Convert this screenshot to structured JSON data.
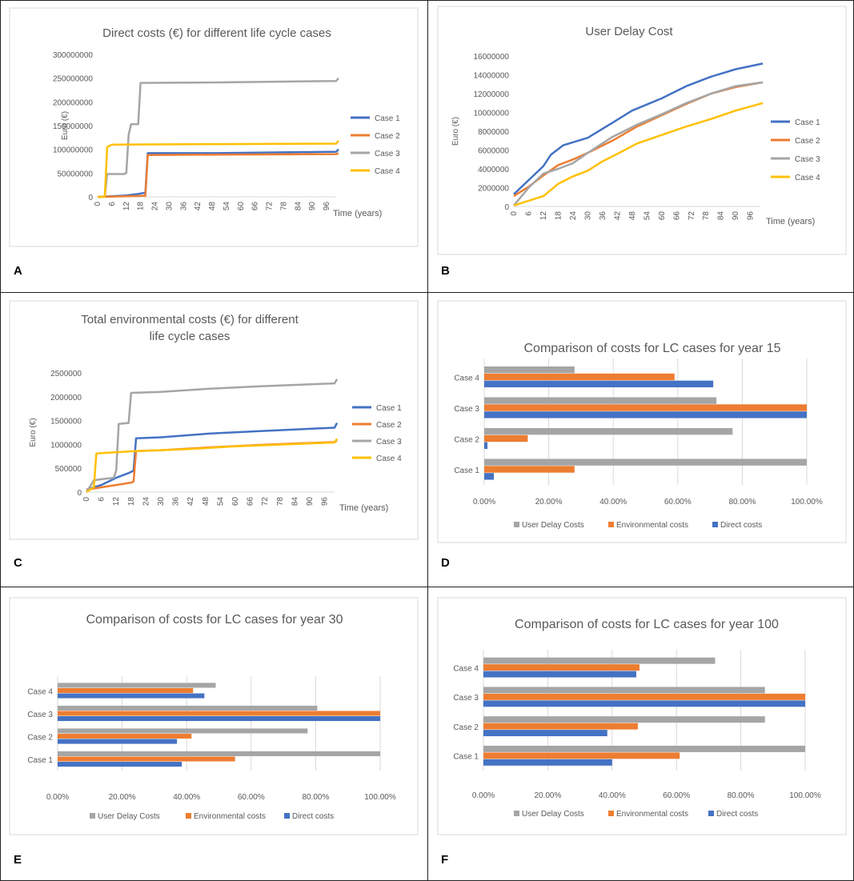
{
  "panel_letters": [
    "A",
    "B",
    "C",
    "D",
    "E",
    "F"
  ],
  "colors": {
    "case1": "#4472c4",
    "case2": "#ed7d31",
    "case3": "#a5a5a5",
    "case4": "#ffc000",
    "user_delay": "#a5a5a5",
    "environmental": "#ed7d31",
    "direct": "#4472c4"
  },
  "chart_data": [
    {
      "id": "A",
      "type": "line",
      "title": "Direct costs (€) for different life cycle cases",
      "xlabel": "Time (years)",
      "ylabel": "Euro (€)",
      "x_ticks": [
        "0",
        "6",
        "12",
        "18",
        "24",
        "30",
        "36",
        "42",
        "48",
        "54",
        "60",
        "66",
        "72",
        "78",
        "84",
        "90",
        "96"
      ],
      "xlim": [
        0,
        100
      ],
      "y_ticks": [
        "0",
        "50000000",
        "100000000",
        "150000000",
        "200000000",
        "250000000",
        "300000000"
      ],
      "ylim": [
        0,
        300000000
      ],
      "series": [
        {
          "name": "Case 1",
          "points": [
            [
              0,
              0
            ],
            [
              5,
              1000000
            ],
            [
              12,
              3000000
            ],
            [
              17,
              6000000
            ],
            [
              19,
              8000000
            ],
            [
              20,
              8000000
            ],
            [
              21,
              92000000
            ],
            [
              50,
              92000000
            ],
            [
              100,
              95000000
            ],
            [
              101,
              100000000
            ]
          ]
        },
        {
          "name": "Case 2",
          "points": [
            [
              0,
              0
            ],
            [
              5,
              500000
            ],
            [
              19,
              2000000
            ],
            [
              20,
              2000000
            ],
            [
              21,
              88000000
            ],
            [
              50,
              89000000
            ],
            [
              100,
              90000000
            ],
            [
              101,
              92000000
            ]
          ]
        },
        {
          "name": "Case 3",
          "points": [
            [
              0,
              0
            ],
            [
              3,
              0
            ],
            [
              4,
              48000000
            ],
            [
              11,
              48000000
            ],
            [
              12,
              50000000
            ],
            [
              13,
              130000000
            ],
            [
              14,
              153000000
            ],
            [
              17,
              153000000
            ],
            [
              18,
              240000000
            ],
            [
              50,
              241000000
            ],
            [
              100,
              244000000
            ],
            [
              101,
              250000000
            ]
          ]
        },
        {
          "name": "Case 4",
          "points": [
            [
              0,
              0
            ],
            [
              3,
              0
            ],
            [
              4,
              105000000
            ],
            [
              6,
              110000000
            ],
            [
              50,
              111000000
            ],
            [
              100,
              112000000
            ],
            [
              101,
              118000000
            ]
          ]
        }
      ]
    },
    {
      "id": "B",
      "type": "line",
      "title": "User Delay Cost",
      "xlabel": "Time (years)",
      "ylabel": "Euro (€)",
      "x_ticks": [
        "0",
        "6",
        "12",
        "18",
        "24",
        "30",
        "36",
        "42",
        "48",
        "54",
        "60",
        "66",
        "72",
        "78",
        "84",
        "90",
        "96"
      ],
      "xlim": [
        0,
        100
      ],
      "y_ticks": [
        "0",
        "2000000",
        "4000000",
        "6000000",
        "8000000",
        "10000000",
        "12000000",
        "14000000",
        "16000000"
      ],
      "ylim": [
        0,
        16000000
      ],
      "series": [
        {
          "name": "Case 1",
          "points": [
            [
              0,
              1300000
            ],
            [
              6,
              2800000
            ],
            [
              12,
              4300000
            ],
            [
              15,
              5500000
            ],
            [
              20,
              6500000
            ],
            [
              30,
              7300000
            ],
            [
              40,
              8900000
            ],
            [
              48,
              10200000
            ],
            [
              60,
              11500000
            ],
            [
              70,
              12800000
            ],
            [
              80,
              13800000
            ],
            [
              90,
              14600000
            ],
            [
              101,
              15200000
            ]
          ]
        },
        {
          "name": "Case 2",
          "points": [
            [
              0,
              1100000
            ],
            [
              6,
              2100000
            ],
            [
              12,
              3300000
            ],
            [
              18,
              4400000
            ],
            [
              24,
              5000000
            ],
            [
              30,
              5700000
            ],
            [
              40,
              7000000
            ],
            [
              50,
              8500000
            ],
            [
              60,
              9700000
            ],
            [
              70,
              10900000
            ],
            [
              80,
              12000000
            ],
            [
              90,
              12700000
            ],
            [
              101,
              13200000
            ]
          ]
        },
        {
          "name": "Case 3",
          "points": [
            [
              0,
              100000
            ],
            [
              6,
              2000000
            ],
            [
              12,
              3500000
            ],
            [
              18,
              4000000
            ],
            [
              24,
              4600000
            ],
            [
              30,
              5700000
            ],
            [
              40,
              7400000
            ],
            [
              50,
              8700000
            ],
            [
              60,
              9800000
            ],
            [
              70,
              11000000
            ],
            [
              80,
              12000000
            ],
            [
              90,
              12800000
            ],
            [
              101,
              13200000
            ]
          ]
        },
        {
          "name": "Case 4",
          "points": [
            [
              0,
              100000
            ],
            [
              6,
              600000
            ],
            [
              12,
              1100000
            ],
            [
              18,
              2400000
            ],
            [
              24,
              3200000
            ],
            [
              30,
              3800000
            ],
            [
              36,
              4800000
            ],
            [
              42,
              5600000
            ],
            [
              50,
              6700000
            ],
            [
              60,
              7600000
            ],
            [
              70,
              8500000
            ],
            [
              80,
              9300000
            ],
            [
              90,
              10200000
            ],
            [
              101,
              11000000
            ]
          ]
        }
      ]
    },
    {
      "id": "C",
      "type": "line",
      "title": "Total environmental costs (€) for different life cycle cases",
      "xlabel": "Time (years)",
      "ylabel": "Euro (€)",
      "x_ticks": [
        "0",
        "6",
        "12",
        "18",
        "24",
        "30",
        "36",
        "42",
        "48",
        "54",
        "60",
        "66",
        "72",
        "78",
        "84",
        "90",
        "96"
      ],
      "xlim": [
        0,
        100
      ],
      "y_ticks": [
        "0",
        "500000",
        "1000000",
        "1500000",
        "2000000",
        "2500000"
      ],
      "ylim": [
        0,
        2500000
      ],
      "series": [
        {
          "name": "Case 1",
          "points": [
            [
              0,
              50000
            ],
            [
              6,
              150000
            ],
            [
              12,
              300000
            ],
            [
              17,
              400000
            ],
            [
              19,
              450000
            ],
            [
              20,
              1130000
            ],
            [
              30,
              1150000
            ],
            [
              50,
              1230000
            ],
            [
              70,
              1280000
            ],
            [
              100,
              1350000
            ],
            [
              101,
              1450000
            ]
          ]
        },
        {
          "name": "Case 2",
          "points": [
            [
              0,
              50000
            ],
            [
              6,
              100000
            ],
            [
              12,
              150000
            ],
            [
              18,
              200000
            ],
            [
              19,
              220000
            ],
            [
              20,
              860000
            ],
            [
              30,
              880000
            ],
            [
              50,
              940000
            ],
            [
              70,
              990000
            ],
            [
              100,
              1050000
            ],
            [
              101,
              1080000
            ]
          ]
        },
        {
          "name": "Case 3",
          "points": [
            [
              0,
              0
            ],
            [
              3,
              250000
            ],
            [
              11,
              300000
            ],
            [
              12,
              450000
            ],
            [
              13,
              1430000
            ],
            [
              17,
              1450000
            ],
            [
              18,
              2080000
            ],
            [
              30,
              2100000
            ],
            [
              50,
              2170000
            ],
            [
              70,
              2220000
            ],
            [
              100,
              2280000
            ],
            [
              101,
              2370000
            ]
          ]
        },
        {
          "name": "Case 4",
          "points": [
            [
              0,
              0
            ],
            [
              3,
              100000
            ],
            [
              4,
              810000
            ],
            [
              10,
              830000
            ],
            [
              20,
              860000
            ],
            [
              40,
              900000
            ],
            [
              60,
              960000
            ],
            [
              80,
              1000000
            ],
            [
              100,
              1040000
            ],
            [
              101,
              1120000
            ]
          ]
        }
      ]
    },
    {
      "id": "D",
      "type": "bar",
      "title": "Comparison of costs for LC cases for year 15",
      "categories": [
        "Case 1",
        "Case 2",
        "Case 3",
        "Case 4"
      ],
      "x_ticks": [
        "0.00%",
        "20.00%",
        "40.00%",
        "60.00%",
        "80.00%",
        "100.00%"
      ],
      "xlim": [
        0,
        100
      ],
      "series": [
        {
          "name": "User Delay Costs",
          "values": [
            100,
            77,
            72,
            28
          ]
        },
        {
          "name": "Environmental costs",
          "values": [
            28,
            13.5,
            100,
            59
          ]
        },
        {
          "name": "Direct costs",
          "values": [
            3,
            1,
            100,
            71
          ]
        }
      ]
    },
    {
      "id": "E",
      "type": "bar",
      "title": "Comparison of costs for LC cases for year 30",
      "categories": [
        "Case 1",
        "Case 2",
        "Case 3",
        "Case 4"
      ],
      "x_ticks": [
        "0.00%",
        "20.00%",
        "40.00%",
        "60.00%",
        "80.00%",
        "100.00%"
      ],
      "xlim": [
        0,
        100
      ],
      "series": [
        {
          "name": "User Delay Costs",
          "values": [
            100,
            77.5,
            80.5,
            49
          ]
        },
        {
          "name": "Environmental costs",
          "values": [
            55,
            41.5,
            100,
            42
          ]
        },
        {
          "name": "Direct costs",
          "values": [
            38.5,
            37,
            100,
            45.5
          ]
        }
      ]
    },
    {
      "id": "F",
      "type": "bar",
      "title": "Comparison of costs for LC cases for year 100",
      "categories": [
        "Case 1",
        "Case 2",
        "Case 3",
        "Case 4"
      ],
      "x_ticks": [
        "0.00%",
        "20.00%",
        "40.00%",
        "60.00%",
        "80.00%",
        "100.00%"
      ],
      "xlim": [
        0,
        100
      ],
      "series": [
        {
          "name": "User Delay Costs",
          "values": [
            100,
            87.5,
            87.5,
            72
          ]
        },
        {
          "name": "Environmental costs",
          "values": [
            61,
            48,
            100,
            48.5
          ]
        },
        {
          "name": "Direct costs",
          "values": [
            40,
            38.5,
            100,
            47.5
          ]
        }
      ]
    }
  ]
}
